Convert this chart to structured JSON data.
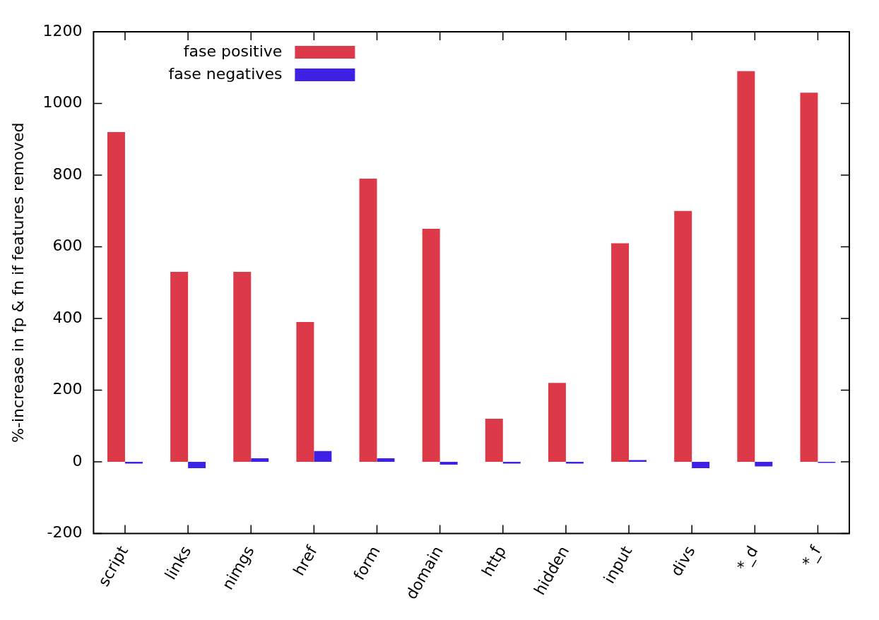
{
  "chart_data": {
    "type": "bar",
    "ylabel": "%-increase in fp & fn if features removed",
    "categories": [
      "script",
      "links",
      "nimgs",
      "href",
      "form",
      "domain",
      "http",
      "hidden",
      "input",
      "divs",
      "*_d",
      "*_f"
    ],
    "series": [
      {
        "name": "fase positive",
        "color": "#dc3a48",
        "values": [
          920,
          530,
          530,
          390,
          790,
          650,
          120,
          220,
          610,
          700,
          1090,
          1030
        ]
      },
      {
        "name": "fase negatives",
        "color": "#3d22e6",
        "values": [
          -5,
          -18,
          10,
          30,
          10,
          -8,
          -5,
          -5,
          5,
          -18,
          -13,
          -3
        ]
      }
    ],
    "ylim": [
      -200,
      1200
    ],
    "yticks": [
      -200,
      0,
      200,
      400,
      600,
      800,
      1000,
      1200
    ],
    "grid": false,
    "legend": "top left"
  }
}
